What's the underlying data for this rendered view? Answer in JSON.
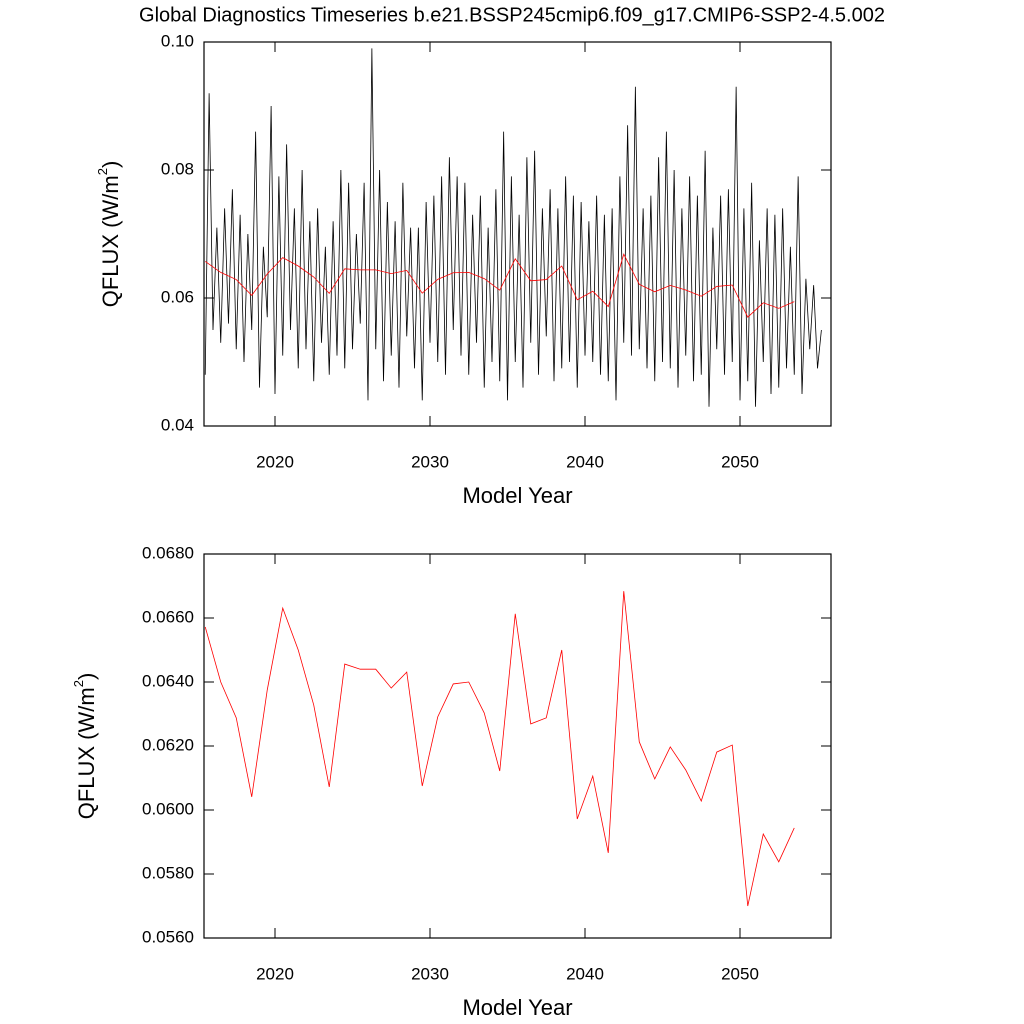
{
  "chart_data": [
    {
      "type": "line",
      "title": "Global Diagnostics Timeseries b.e21.BSSP245cmip6.f09_g17.CMIP6-SSP2-4.5.002",
      "xlabel": "Model Year",
      "ylabel": [
        "QFLUX (W/m",
        "2",
        ")"
      ],
      "xlim": [
        2015.42,
        2055.87
      ],
      "xticks": [
        2020,
        2030,
        2040,
        2050
      ],
      "ylim": [
        0.04,
        0.1
      ],
      "yticks": [
        0.04,
        0.06,
        0.08,
        {
          "value": 0.1,
          "label": "0.10"
        }
      ],
      "series": [
        {
          "color": "#000000",
          "x": [
            2015.5,
            2015.75,
            2016,
            2016.25,
            2016.5,
            2016.75,
            2017,
            2017.25,
            2017.5,
            2017.75,
            2018,
            2018.25,
            2018.5,
            2018.75,
            2019,
            2019.25,
            2019.5,
            2019.75,
            2020,
            2020.25,
            2020.5,
            2020.75,
            2021,
            2021.25,
            2021.5,
            2021.75,
            2022,
            2022.25,
            2022.5,
            2022.75,
            2023,
            2023.25,
            2023.5,
            2023.75,
            2024,
            2024.25,
            2024.5,
            2024.75,
            2025,
            2025.25,
            2025.5,
            2025.75,
            2026,
            2026.25,
            2026.5,
            2026.75,
            2027,
            2027.25,
            2027.5,
            2027.75,
            2028,
            2028.25,
            2028.5,
            2028.75,
            2029,
            2029.25,
            2029.5,
            2029.75,
            2030,
            2030.25,
            2030.5,
            2030.75,
            2031,
            2031.25,
            2031.5,
            2031.75,
            2032,
            2032.25,
            2032.5,
            2032.75,
            2033,
            2033.25,
            2033.5,
            2033.75,
            2034,
            2034.25,
            2034.5,
            2034.75,
            2035,
            2035.25,
            2035.5,
            2035.75,
            2036,
            2036.25,
            2036.5,
            2036.75,
            2037,
            2037.25,
            2037.5,
            2037.75,
            2038,
            2038.25,
            2038.5,
            2038.75,
            2039,
            2039.25,
            2039.5,
            2039.75,
            2040,
            2040.25,
            2040.5,
            2040.75,
            2041,
            2041.25,
            2041.5,
            2041.75,
            2042,
            2042.25,
            2042.5,
            2042.75,
            2043,
            2043.25,
            2043.5,
            2043.75,
            2044,
            2044.25,
            2044.5,
            2044.75,
            2045,
            2045.25,
            2045.5,
            2045.75,
            2046,
            2046.25,
            2046.5,
            2046.75,
            2047,
            2047.25,
            2047.5,
            2047.75,
            2048,
            2048.25,
            2048.5,
            2048.75,
            2049,
            2049.25,
            2049.5,
            2049.75,
            2050,
            2050.25,
            2050.5,
            2050.75,
            2051,
            2051.25,
            2051.5,
            2051.75,
            2052,
            2052.25,
            2052.5,
            2052.75,
            2053,
            2053.25,
            2053.5,
            2053.75,
            2054,
            2054.25,
            2054.5,
            2054.75,
            2055,
            2055.25
          ],
          "values": [
            0.048,
            0.092,
            0.055,
            0.071,
            0.053,
            0.074,
            0.056,
            0.077,
            0.052,
            0.073,
            0.05,
            0.07,
            0.055,
            0.086,
            0.046,
            0.068,
            0.057,
            0.09,
            0.045,
            0.079,
            0.051,
            0.084,
            0.055,
            0.074,
            0.049,
            0.08,
            0.052,
            0.072,
            0.047,
            0.074,
            0.053,
            0.068,
            0.048,
            0.072,
            0.051,
            0.08,
            0.049,
            0.078,
            0.052,
            0.07,
            0.056,
            0.078,
            0.044,
            0.099,
            0.052,
            0.08,
            0.047,
            0.075,
            0.051,
            0.072,
            0.046,
            0.078,
            0.054,
            0.071,
            0.049,
            0.071,
            0.044,
            0.075,
            0.053,
            0.076,
            0.05,
            0.079,
            0.048,
            0.082,
            0.055,
            0.079,
            0.051,
            0.078,
            0.048,
            0.073,
            0.053,
            0.076,
            0.046,
            0.071,
            0.05,
            0.077,
            0.047,
            0.086,
            0.044,
            0.079,
            0.05,
            0.073,
            0.046,
            0.082,
            0.053,
            0.083,
            0.048,
            0.074,
            0.054,
            0.077,
            0.047,
            0.074,
            0.049,
            0.079,
            0.05,
            0.076,
            0.046,
            0.075,
            0.051,
            0.072,
            0.05,
            0.076,
            0.048,
            0.073,
            0.047,
            0.074,
            0.044,
            0.079,
            0.053,
            0.087,
            0.051,
            0.093,
            0.052,
            0.074,
            0.049,
            0.076,
            0.047,
            0.082,
            0.05,
            0.086,
            0.049,
            0.08,
            0.046,
            0.074,
            0.051,
            0.079,
            0.047,
            0.076,
            0.048,
            0.083,
            0.043,
            0.071,
            0.052,
            0.076,
            0.048,
            0.077,
            0.05,
            0.093,
            0.044,
            0.074,
            0.047,
            0.078,
            0.043,
            0.069,
            0.05,
            0.074,
            0.045,
            0.073,
            0.046,
            0.074,
            0.049,
            0.068,
            0.048,
            0.079,
            0.045,
            0.063,
            0.052,
            0.062,
            0.049,
            0.055
          ]
        },
        {
          "color": "#ff0000",
          "x": [
            2015.5,
            2016.5,
            2017.5,
            2018.5,
            2019.5,
            2020.5,
            2021.5,
            2022.5,
            2023.5,
            2024.5,
            2025.5,
            2026.5,
            2027.5,
            2028.5,
            2029.5,
            2030.5,
            2031.5,
            2032.5,
            2033.5,
            2034.5,
            2035.5,
            2036.5,
            2037.5,
            2038.5,
            2039.5,
            2040.5,
            2041.5,
            2042.5,
            2043.5,
            2044.5,
            2045.5,
            2046.5,
            2047.5,
            2048.5,
            2049.5,
            2050.5,
            2051.5,
            2052.5,
            2053.5
          ],
          "values": [
            0.06572,
            0.064,
            0.06288,
            0.06041,
            0.06375,
            0.06631,
            0.065,
            0.06328,
            0.06072,
            0.06456,
            0.0644,
            0.0644,
            0.06381,
            0.06431,
            0.06075,
            0.06291,
            0.06394,
            0.064,
            0.06303,
            0.06122,
            0.06613,
            0.06269,
            0.06288,
            0.065,
            0.05972,
            0.06106,
            0.05866,
            0.06684,
            0.06213,
            0.06097,
            0.06197,
            0.06125,
            0.06028,
            0.06181,
            0.06203,
            0.057,
            0.05925,
            0.05838,
            0.05944
          ]
        }
      ]
    },
    {
      "type": "line",
      "xlabel": "Model Year",
      "ylabel": [
        "QFLUX (W/m",
        "2",
        ")"
      ],
      "xlim": [
        2015.42,
        2055.87
      ],
      "xticks": [
        2020,
        2030,
        2040,
        2050
      ],
      "ylim": [
        0.056,
        0.068
      ],
      "yticks": [
        {
          "value": 0.056,
          "label": "0.0560"
        },
        {
          "value": 0.058,
          "label": "0.0580"
        },
        {
          "value": 0.06,
          "label": "0.0600"
        },
        {
          "value": 0.062,
          "label": "0.0620"
        },
        {
          "value": 0.064,
          "label": "0.0640"
        },
        {
          "value": 0.066,
          "label": "0.0660"
        },
        {
          "value": 0.068,
          "label": "0.0680"
        }
      ],
      "series": [
        {
          "color": "#ff0000",
          "x": [
            2015.5,
            2016.5,
            2017.5,
            2018.5,
            2019.5,
            2020.5,
            2021.5,
            2022.5,
            2023.5,
            2024.5,
            2025.5,
            2026.5,
            2027.5,
            2028.5,
            2029.5,
            2030.5,
            2031.5,
            2032.5,
            2033.5,
            2034.5,
            2035.5,
            2036.5,
            2037.5,
            2038.5,
            2039.5,
            2040.5,
            2041.5,
            2042.5,
            2043.5,
            2044.5,
            2045.5,
            2046.5,
            2047.5,
            2048.5,
            2049.5,
            2050.5,
            2051.5,
            2052.5,
            2053.5
          ],
          "values": [
            0.06572,
            0.064,
            0.06288,
            0.06041,
            0.06375,
            0.06631,
            0.065,
            0.06328,
            0.06072,
            0.06456,
            0.0644,
            0.0644,
            0.06381,
            0.06431,
            0.06075,
            0.06291,
            0.06394,
            0.064,
            0.06303,
            0.06122,
            0.06613,
            0.06269,
            0.06288,
            0.065,
            0.05972,
            0.06106,
            0.05866,
            0.06684,
            0.06213,
            0.06097,
            0.06197,
            0.06125,
            0.06028,
            0.06181,
            0.06203,
            0.057,
            0.05925,
            0.05838,
            0.05944
          ]
        }
      ]
    }
  ]
}
